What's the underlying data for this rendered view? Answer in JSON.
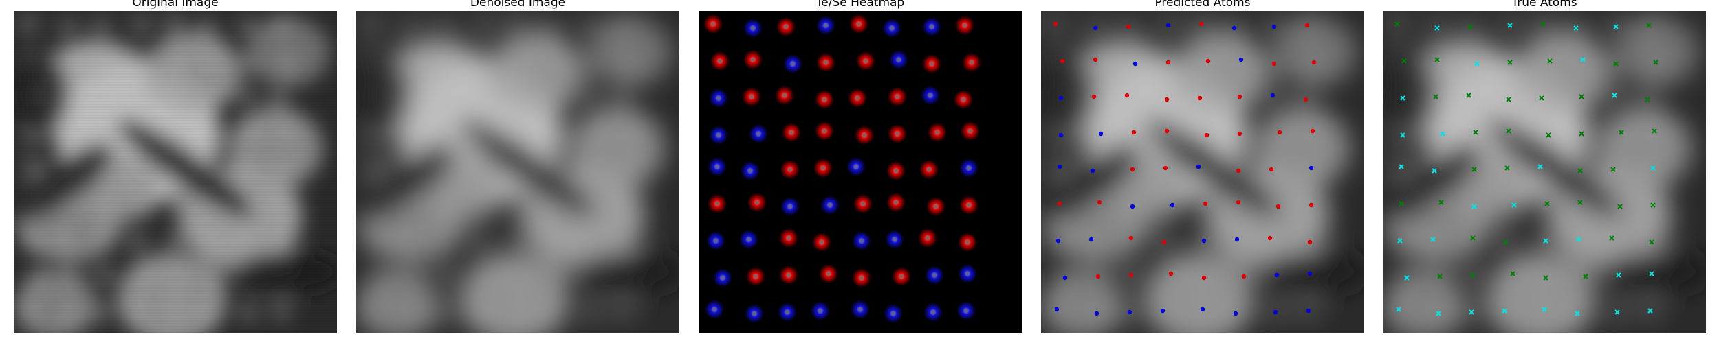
{
  "panels": {
    "original": {
      "title": "Original Image"
    },
    "denoised": {
      "title": "Denoised Image"
    },
    "heatmap": {
      "title": "Te/Se Heatmap"
    },
    "predicted": {
      "title": "Predicted Atoms"
    },
    "true_atoms": {
      "title": "True Atoms"
    }
  },
  "colors": {
    "te": "#e00000",
    "se": "#1010e0",
    "pred_red": "#e00000",
    "pred_blue": "#0000e0",
    "true_green": "#008000",
    "true_cyan": "#00e5e5"
  },
  "lattice": {
    "rows": [
      [
        "r",
        "b",
        "r",
        "b",
        "r",
        "b",
        "b",
        "r"
      ],
      [
        "r",
        "r",
        "b",
        "r",
        "r",
        "b",
        "r",
        "r"
      ],
      [
        "b",
        "r",
        "r",
        "r",
        "r",
        "r",
        "b",
        "r"
      ],
      [
        "b",
        "b",
        "r",
        "r",
        "r",
        "r",
        "r",
        "r"
      ],
      [
        "b",
        "b",
        "r",
        "r",
        "b",
        "r",
        "r",
        "b"
      ],
      [
        "r",
        "r",
        "b",
        "b",
        "r",
        "r",
        "r",
        "r"
      ],
      [
        "b",
        "b",
        "r",
        "r",
        "b",
        "b",
        "r",
        "r"
      ],
      [
        "b",
        "r",
        "r",
        "r",
        "r",
        "r",
        "b",
        "b"
      ],
      [
        "b",
        "b",
        "b",
        "b",
        "b",
        "b",
        "b",
        "b"
      ]
    ]
  }
}
